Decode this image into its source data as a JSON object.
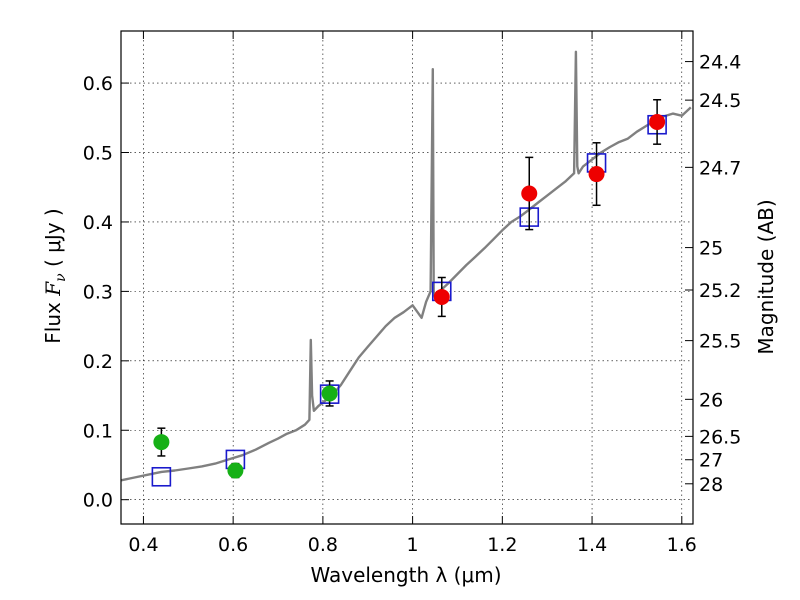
{
  "chart_data": {
    "type": "scatter",
    "xlabel": "Wavelength  λ (μm)",
    "ylabel_prefix": "Flux  ",
    "ylabel_math": "F",
    "ylabel_sub": "ν",
    "ylabel_suffix": "  ( μJy )",
    "ylabel_right": "Magnitude (AB)",
    "xlim": [
      0.35,
      1.625
    ],
    "ylim": [
      -0.035,
      0.675
    ],
    "grid": true,
    "x_ticks": [
      {
        "v": 0.4,
        "label": "0.4"
      },
      {
        "v": 0.6,
        "label": "0.6"
      },
      {
        "v": 0.8,
        "label": "0.8"
      },
      {
        "v": 1.0,
        "label": "1"
      },
      {
        "v": 1.2,
        "label": "1.2"
      },
      {
        "v": 1.4,
        "label": "1.4"
      },
      {
        "v": 1.6,
        "label": "1.6"
      }
    ],
    "y_ticks": [
      {
        "v": 0.0,
        "label": "0.0"
      },
      {
        "v": 0.1,
        "label": "0.1"
      },
      {
        "v": 0.2,
        "label": "0.2"
      },
      {
        "v": 0.3,
        "label": "0.3"
      },
      {
        "v": 0.4,
        "label": "0.4"
      },
      {
        "v": 0.5,
        "label": "0.5"
      },
      {
        "v": 0.6,
        "label": "0.6"
      }
    ],
    "right_ticks": [
      {
        "mag": 24.4,
        "label": "24.4"
      },
      {
        "mag": 24.5,
        "label": "24.5"
      },
      {
        "mag": 24.7,
        "label": "24.7"
      },
      {
        "mag": 25.0,
        "label": "25"
      },
      {
        "mag": 25.2,
        "label": "25.2"
      },
      {
        "mag": 25.5,
        "label": "25.5"
      },
      {
        "mag": 26.0,
        "label": "26"
      },
      {
        "mag": 26.5,
        "label": "26.5"
      },
      {
        "mag": 27.0,
        "label": "27"
      },
      {
        "mag": 28.0,
        "label": "28"
      }
    ],
    "model_spectrum": {
      "color": "#808080",
      "x": [
        0.35,
        0.38,
        0.41,
        0.44,
        0.47,
        0.5,
        0.53,
        0.56,
        0.59,
        0.62,
        0.65,
        0.68,
        0.7,
        0.72,
        0.74,
        0.76,
        0.77,
        0.773,
        0.776,
        0.78,
        0.79,
        0.8,
        0.82,
        0.84,
        0.86,
        0.88,
        0.9,
        0.92,
        0.94,
        0.96,
        0.98,
        1.0,
        1.02,
        1.03,
        1.04,
        1.045,
        1.047,
        1.05,
        1.06,
        1.08,
        1.1,
        1.12,
        1.14,
        1.16,
        1.18,
        1.2,
        1.22,
        1.24,
        1.26,
        1.28,
        1.3,
        1.32,
        1.34,
        1.36,
        1.364,
        1.367,
        1.37,
        1.38,
        1.4,
        1.42,
        1.44,
        1.46,
        1.48,
        1.5,
        1.52,
        1.54,
        1.56,
        1.58,
        1.6,
        1.62
      ],
      "y": [
        0.028,
        0.032,
        0.036,
        0.04,
        0.042,
        0.045,
        0.048,
        0.052,
        0.058,
        0.064,
        0.072,
        0.082,
        0.088,
        0.095,
        0.1,
        0.108,
        0.115,
        0.23,
        0.15,
        0.128,
        0.135,
        0.14,
        0.15,
        0.165,
        0.185,
        0.205,
        0.22,
        0.235,
        0.25,
        0.262,
        0.27,
        0.28,
        0.262,
        0.285,
        0.3,
        0.62,
        0.3,
        0.292,
        0.3,
        0.312,
        0.325,
        0.338,
        0.35,
        0.362,
        0.375,
        0.388,
        0.4,
        0.408,
        0.418,
        0.428,
        0.438,
        0.448,
        0.458,
        0.47,
        0.645,
        0.48,
        0.47,
        0.48,
        0.49,
        0.5,
        0.508,
        0.515,
        0.52,
        0.53,
        0.538,
        0.545,
        0.552,
        0.556,
        0.553,
        0.565
      ]
    },
    "series": [
      {
        "marker": "square-open",
        "color": "#1a1acc",
        "x": [
          0.44,
          0.605,
          0.815,
          1.065,
          1.26,
          1.41,
          1.545
        ],
        "y": [
          0.033,
          0.058,
          0.152,
          0.3,
          0.407,
          0.485,
          0.54
        ]
      },
      {
        "marker": "circle",
        "color": "#16b016",
        "x": [
          0.44,
          0.605,
          0.815
        ],
        "y": [
          0.083,
          0.042,
          0.153
        ],
        "yerr": [
          0.02,
          0.01,
          0.018
        ]
      },
      {
        "marker": "circle",
        "color": "#ee0000",
        "x": [
          1.065,
          1.26,
          1.41,
          1.545
        ],
        "y": [
          0.292,
          0.441,
          0.469,
          0.544
        ],
        "yerr": [
          0.028,
          0.052,
          0.045,
          0.032
        ]
      }
    ]
  }
}
